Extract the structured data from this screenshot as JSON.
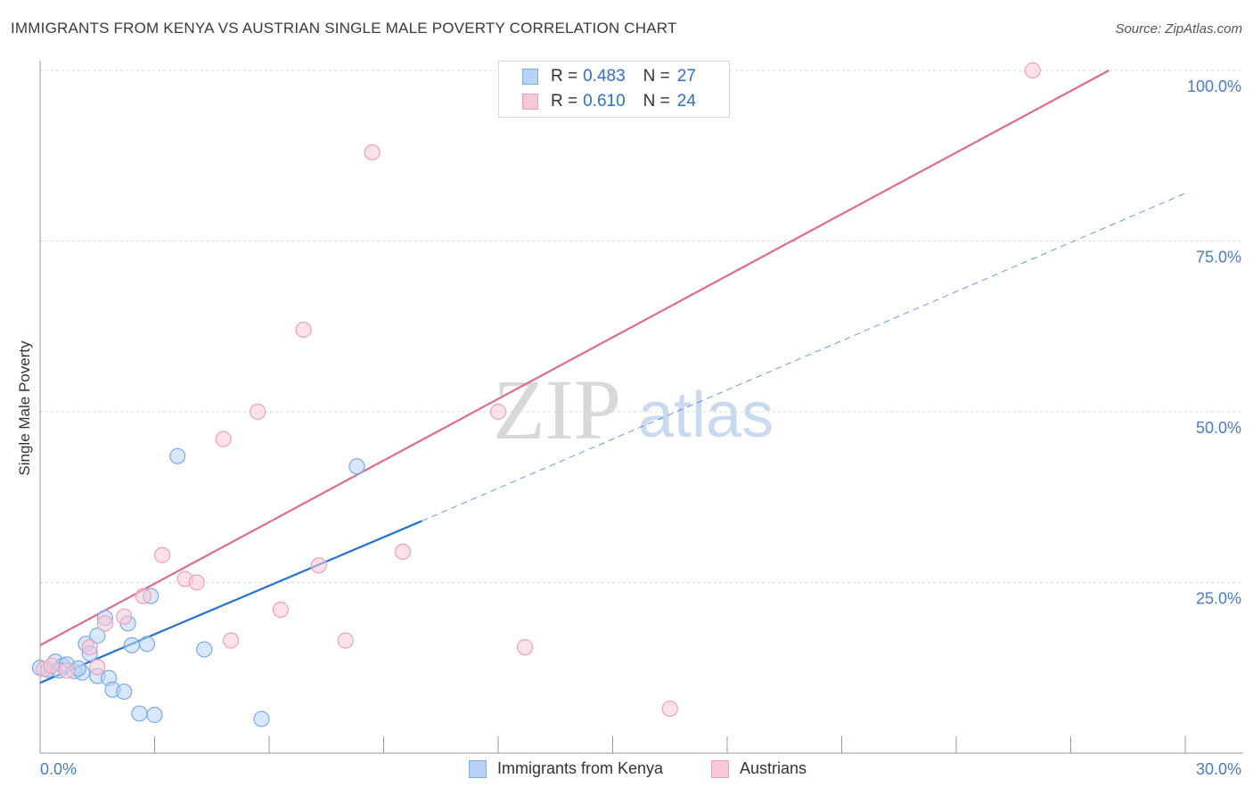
{
  "chart_data": {
    "type": "scatter",
    "title": "IMMIGRANTS FROM KENYA VS AUSTRIAN SINGLE MALE POVERTY CORRELATION CHART",
    "source": "Source: ZipAtlas.com",
    "xlabel": "",
    "ylabel": "Single Male Poverty",
    "xlim": [
      0,
      30
    ],
    "ylim": [
      0,
      100
    ],
    "x_tick_labels": [
      "0.0%",
      "30.0%"
    ],
    "y_ticks": [
      {
        "value": 25,
        "label": "25.0%"
      },
      {
        "value": 50,
        "label": "50.0%"
      },
      {
        "value": 75,
        "label": "75.0%"
      },
      {
        "value": 100,
        "label": "100.0%"
      }
    ],
    "watermark": {
      "part1": "ZIP",
      "part2": "atlas"
    },
    "series": [
      {
        "name": "Immigrants from Kenya",
        "color": "#7aaae8",
        "fill": "#b9d3f5",
        "line_color": "#2471d4",
        "R": "0.483",
        "N": "27",
        "r_label": "R =",
        "n_label": "N =",
        "points": [
          [
            0.0,
            12.5
          ],
          [
            0.2,
            12.2
          ],
          [
            0.4,
            13.4
          ],
          [
            0.6,
            12.8
          ],
          [
            0.7,
            13.0
          ],
          [
            0.9,
            12.0
          ],
          [
            1.1,
            11.8
          ],
          [
            1.2,
            16.0
          ],
          [
            1.3,
            14.6
          ],
          [
            1.5,
            11.3
          ],
          [
            1.5,
            17.2
          ],
          [
            1.7,
            19.8
          ],
          [
            1.8,
            11.0
          ],
          [
            1.9,
            9.3
          ],
          [
            2.2,
            9.0
          ],
          [
            2.3,
            19.0
          ],
          [
            2.4,
            15.8
          ],
          [
            2.6,
            5.8
          ],
          [
            2.8,
            16.0
          ],
          [
            2.9,
            23.0
          ],
          [
            3.0,
            5.6
          ],
          [
            3.6,
            43.5
          ],
          [
            4.3,
            15.2
          ],
          [
            5.8,
            5.0
          ],
          [
            8.3,
            42.0
          ],
          [
            0.5,
            12.1
          ],
          [
            1.0,
            12.4
          ]
        ],
        "trend_solid": [
          [
            0.0,
            10.3
          ],
          [
            10.0,
            34.0
          ]
        ],
        "trend_dashed": [
          [
            10.0,
            34.0
          ],
          [
            30.0,
            82.0
          ]
        ]
      },
      {
        "name": "Austrians",
        "color": "#eea0b8",
        "fill": "#f8c8d6",
        "line_color": "#e06a94",
        "R": "0.610",
        "N": "24",
        "r_label": "R =",
        "n_label": "N =",
        "points": [
          [
            0.1,
            12.3
          ],
          [
            0.7,
            12.1
          ],
          [
            1.3,
            15.5
          ],
          [
            1.7,
            19.0
          ],
          [
            2.2,
            20.0
          ],
          [
            2.7,
            23.0
          ],
          [
            3.2,
            29.0
          ],
          [
            3.8,
            25.5
          ],
          [
            4.1,
            25.0
          ],
          [
            4.8,
            46.0
          ],
          [
            5.0,
            16.5
          ],
          [
            5.7,
            50.0
          ],
          [
            6.3,
            21.0
          ],
          [
            6.9,
            62.0
          ],
          [
            7.3,
            27.5
          ],
          [
            8.0,
            16.5
          ],
          [
            8.7,
            88.0
          ],
          [
            9.5,
            29.5
          ],
          [
            12.0,
            50.0
          ],
          [
            12.7,
            15.5
          ],
          [
            16.5,
            6.5
          ],
          [
            26.0,
            100.0
          ],
          [
            0.3,
            12.8
          ],
          [
            1.5,
            12.6
          ]
        ],
        "trend_solid": [
          [
            0.0,
            15.8
          ],
          [
            28.0,
            100.0
          ]
        ]
      }
    ]
  }
}
